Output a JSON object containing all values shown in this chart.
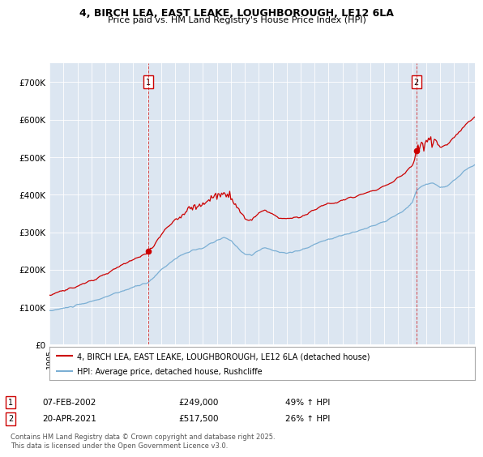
{
  "title_line1": "4, BIRCH LEA, EAST LEAKE, LOUGHBOROUGH, LE12 6LA",
  "title_line2": "Price paid vs. HM Land Registry's House Price Index (HPI)",
  "bg_color": "#dce6f1",
  "red_line_color": "#cc0000",
  "blue_line_color": "#7bafd4",
  "ylim": [
    0,
    750000
  ],
  "yticks": [
    0,
    100000,
    200000,
    300000,
    400000,
    500000,
    600000,
    700000
  ],
  "ytick_labels": [
    "£0",
    "£100K",
    "£200K",
    "£300K",
    "£400K",
    "£500K",
    "£600K",
    "£700K"
  ],
  "sale1_year": 2002.1,
  "sale1_price": 249000,
  "sale2_year": 2021.3,
  "sale2_price": 517500,
  "legend_line1": "4, BIRCH LEA, EAST LEAKE, LOUGHBOROUGH, LE12 6LA (detached house)",
  "legend_line2": "HPI: Average price, detached house, Rushcliffe",
  "footnote": "Contains HM Land Registry data © Crown copyright and database right 2025.\nThis data is licensed under the Open Government Licence v3.0.",
  "xmin": 1995,
  "xmax": 2025.5
}
